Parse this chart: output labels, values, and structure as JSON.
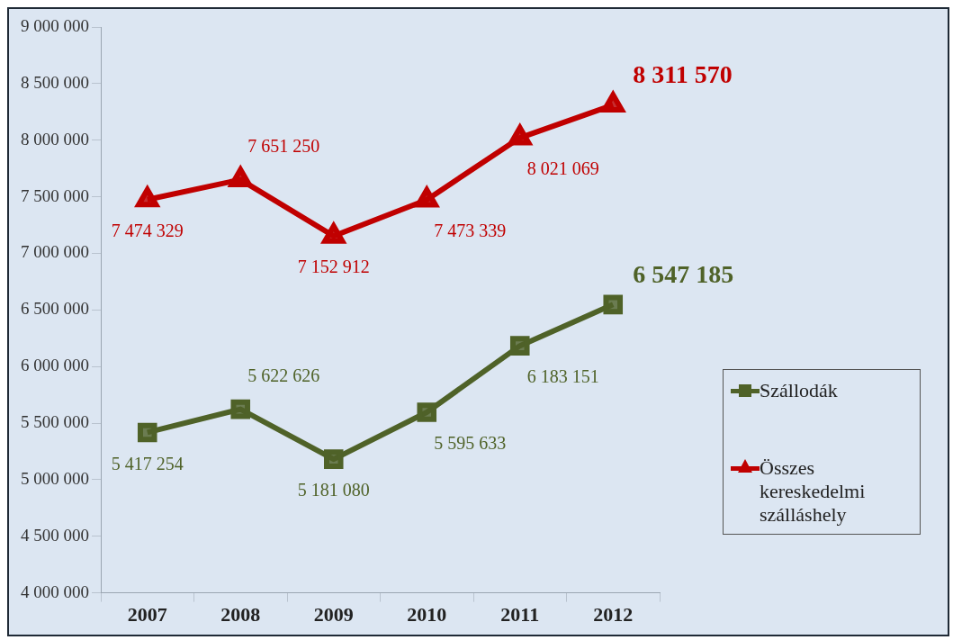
{
  "chart_data": {
    "type": "line",
    "categories": [
      "2007",
      "2008",
      "2009",
      "2010",
      "2011",
      "2012"
    ],
    "series": [
      {
        "name": "Szállodák",
        "color": "#4f6228",
        "marker": "square",
        "values": [
          5417254,
          5622626,
          5181080,
          5595633,
          6183151,
          6547185
        ],
        "value_labels": [
          "5 417 254",
          "5 622 626",
          "5 181 080",
          "5 595 633",
          "6 183 151",
          "6 547 185"
        ]
      },
      {
        "name": "Összes kereskedelmi szálláshely",
        "color": "#c00000",
        "marker": "triangle",
        "values": [
          7474329,
          7651250,
          7152912,
          7473339,
          8021069,
          8311570
        ],
        "value_labels": [
          "7 474 329",
          "7 651 250",
          "7 152 912",
          "7 473 339",
          "8 021 069",
          "8 311 570"
        ]
      }
    ],
    "ylim": [
      4000000,
      9000000
    ],
    "yticks": [
      {
        "value": 4000000,
        "label": "4 000 000"
      },
      {
        "value": 4500000,
        "label": "4 500 000"
      },
      {
        "value": 5000000,
        "label": "5 000 000"
      },
      {
        "value": 5500000,
        "label": "5 500 000"
      },
      {
        "value": 6000000,
        "label": "6 000 000"
      },
      {
        "value": 6500000,
        "label": "6 500 000"
      },
      {
        "value": 7000000,
        "label": "7 000 000"
      },
      {
        "value": 7500000,
        "label": "7 500 000"
      },
      {
        "value": 8000000,
        "label": "8 000 000"
      },
      {
        "value": 8500000,
        "label": "8 500 000"
      },
      {
        "value": 9000000,
        "label": "9 000 000"
      }
    ],
    "grid": false,
    "legend": "right",
    "line_style": "solid"
  }
}
